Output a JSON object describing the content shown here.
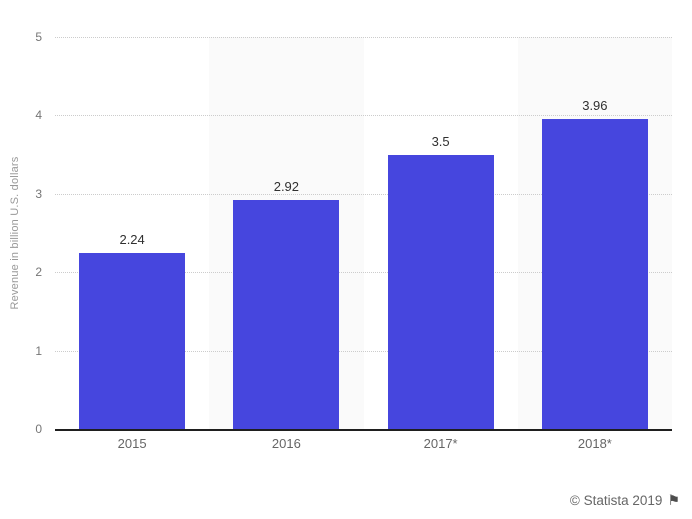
{
  "chart_data": {
    "type": "bar",
    "title": "",
    "xlabel": "",
    "ylabel": "Revenue in billion U.S. dollars",
    "categories": [
      "2015",
      "2016",
      "2017*",
      "2018*"
    ],
    "values": [
      2.24,
      2.92,
      3.5,
      3.96
    ],
    "value_labels": [
      "2.24",
      "2.92",
      "3.5",
      "3.96"
    ],
    "ylim": [
      0,
      5
    ],
    "yticks": [
      0,
      1,
      2,
      3,
      4,
      5
    ],
    "grid": "horizontal-dotted",
    "legend": "none",
    "bar_color": "#4646de",
    "band_color": "#fafafa",
    "band_columns": [
      1,
      3
    ]
  },
  "footer": {
    "copyright": "© Statista 2019",
    "flag_icon": "⚑"
  }
}
